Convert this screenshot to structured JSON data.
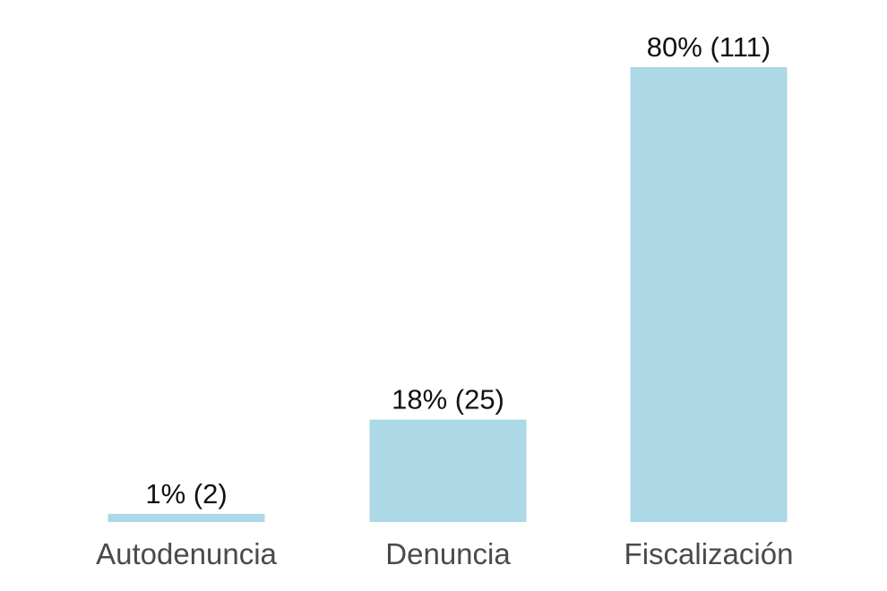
{
  "chart_data": {
    "type": "bar",
    "categories": [
      "Autodenuncia",
      "Denuncia",
      "Fiscalización"
    ],
    "values": [
      2,
      25,
      111
    ],
    "percentages": [
      1,
      18,
      80
    ],
    "data_labels": [
      "1% (2)",
      "18% (25)",
      "80% (111)"
    ],
    "title": "",
    "xlabel": "",
    "ylabel": "",
    "ylim": [
      0,
      111
    ],
    "grid": false,
    "legend": "none",
    "colors": {
      "bar": "#add8e6",
      "data_label": "#111111",
      "tick_label": "#4a4a4a",
      "background": "#ffffff"
    }
  }
}
